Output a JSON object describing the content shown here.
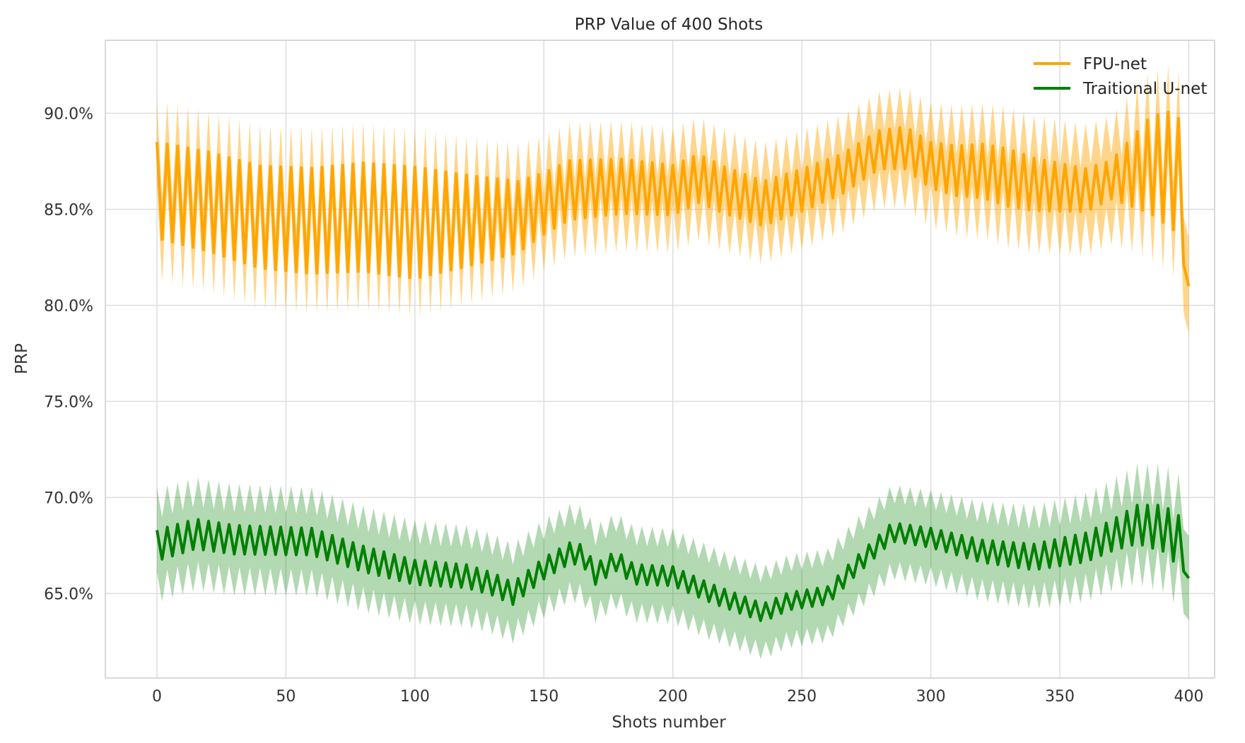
{
  "chart_data": {
    "type": "line",
    "title": "PRP Value of 400 Shots",
    "xlabel": "Shots number",
    "ylabel": "PRP",
    "xlim": [
      -20,
      410
    ],
    "ylim": [
      60.6,
      93.8
    ],
    "x_ticks": [
      0,
      50,
      100,
      150,
      200,
      250,
      300,
      350,
      400
    ],
    "y_ticks": [
      65.0,
      70.0,
      75.0,
      80.0,
      85.0,
      90.0
    ],
    "y_tick_labels": [
      "65.0%",
      "70.0%",
      "75.0%",
      "80.0%",
      "85.0%",
      "90.0%"
    ],
    "grid": true,
    "legend_position": "top-right",
    "sample_step": 2,
    "series": [
      {
        "name": "FPU-net",
        "color": "#FFA500",
        "band_opacity": 0.45,
        "trend_points": [
          [
            0,
            86.0
          ],
          [
            20,
            85.4
          ],
          [
            40,
            84.6
          ],
          [
            60,
            84.4
          ],
          [
            80,
            84.6
          ],
          [
            100,
            84.3
          ],
          [
            120,
            84.4
          ],
          [
            140,
            84.6
          ],
          [
            150,
            85.3
          ],
          [
            160,
            86.0
          ],
          [
            180,
            86.2
          ],
          [
            200,
            86.0
          ],
          [
            210,
            86.6
          ],
          [
            220,
            86.0
          ],
          [
            235,
            85.3
          ],
          [
            250,
            86.0
          ],
          [
            265,
            86.8
          ],
          [
            280,
            88.1
          ],
          [
            290,
            88.2
          ],
          [
            300,
            87.3
          ],
          [
            310,
            87.0
          ],
          [
            320,
            87.0
          ],
          [
            340,
            86.3
          ],
          [
            360,
            86.0
          ],
          [
            375,
            86.8
          ],
          [
            385,
            87.3
          ],
          [
            395,
            87.0
          ],
          [
            400,
            84.5
          ]
        ],
        "amplitude": [
          [
            0,
            2.5
          ],
          [
            100,
            2.9
          ],
          [
            150,
            1.6
          ],
          [
            200,
            1.3
          ],
          [
            250,
            1.1
          ],
          [
            280,
            1.0
          ],
          [
            330,
            1.5
          ],
          [
            370,
            1.0
          ],
          [
            385,
            2.5
          ],
          [
            400,
            3.5
          ]
        ],
        "band_half_width": [
          [
            0,
            2.2
          ],
          [
            150,
            2.0
          ],
          [
            200,
            2.0
          ],
          [
            300,
            2.1
          ],
          [
            400,
            2.5
          ]
        ],
        "end_value": 81.0
      },
      {
        "name": "Traitional U-net",
        "color": "#008000",
        "band_opacity": 0.3,
        "trend_points": [
          [
            0,
            67.5
          ],
          [
            15,
            68.1
          ],
          [
            30,
            67.8
          ],
          [
            60,
            67.7
          ],
          [
            80,
            66.8
          ],
          [
            100,
            66.1
          ],
          [
            120,
            65.9
          ],
          [
            130,
            65.5
          ],
          [
            138,
            65.0
          ],
          [
            150,
            66.3
          ],
          [
            160,
            67.1
          ],
          [
            165,
            67.0
          ],
          [
            170,
            66.0
          ],
          [
            178,
            66.7
          ],
          [
            185,
            66.0
          ],
          [
            200,
            65.9
          ],
          [
            215,
            65.0
          ],
          [
            235,
            64.0
          ],
          [
            245,
            64.6
          ],
          [
            260,
            64.9
          ],
          [
            270,
            66.3
          ],
          [
            285,
            68.2
          ],
          [
            300,
            67.9
          ],
          [
            320,
            67.2
          ],
          [
            340,
            66.9
          ],
          [
            360,
            67.4
          ],
          [
            380,
            68.6
          ],
          [
            390,
            68.4
          ],
          [
            400,
            67.3
          ]
        ],
        "amplitude": [
          [
            0,
            0.8
          ],
          [
            150,
            0.55
          ],
          [
            250,
            0.45
          ],
          [
            300,
            0.5
          ],
          [
            370,
            0.8
          ],
          [
            400,
            1.4
          ]
        ],
        "band_half_width": [
          [
            0,
            2.2
          ],
          [
            200,
            2.0
          ],
          [
            300,
            2.0
          ],
          [
            400,
            2.2
          ]
        ],
        "end_value": 65.8
      }
    ]
  }
}
